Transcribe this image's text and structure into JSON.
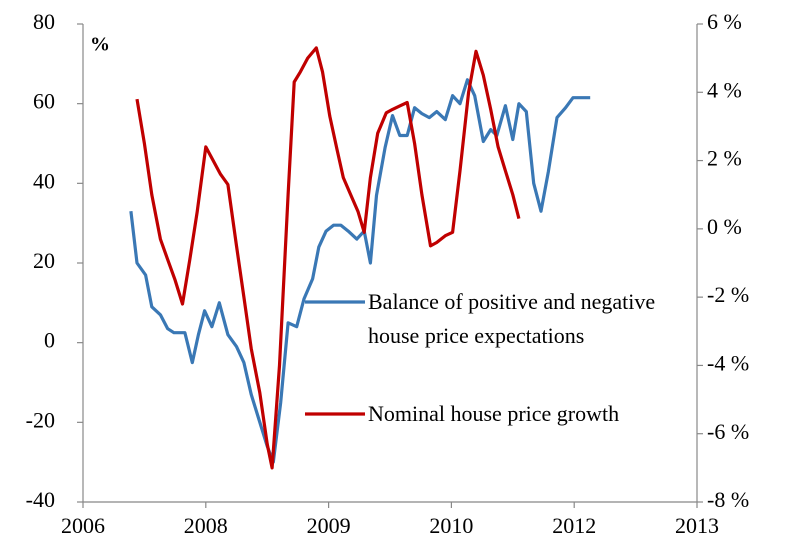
{
  "chart_data": {
    "type": "line",
    "y_unit_label": "%",
    "xlim": [
      0,
      5
    ],
    "xticks": [
      {
        "value": 0,
        "label": "2006"
      },
      {
        "value": 1,
        "label": "2008"
      },
      {
        "value": 2,
        "label": "2009"
      },
      {
        "value": 3,
        "label": "2010"
      },
      {
        "value": 4,
        "label": "2012"
      },
      {
        "value": 5,
        "label": "2013"
      }
    ],
    "ylim": [
      -40,
      80
    ],
    "yticks": [
      -40,
      -20,
      0,
      20,
      40,
      60,
      80
    ],
    "y2lim": [
      -8,
      6
    ],
    "y2ticks": [
      {
        "value": -8,
        "label": "-8 %"
      },
      {
        "value": -6,
        "label": "-6 %"
      },
      {
        "value": -4,
        "label": "-4 %"
      },
      {
        "value": -2,
        "label": "-2 %"
      },
      {
        "value": 0,
        "label": "0 %"
      },
      {
        "value": 2,
        "label": "2 %"
      },
      {
        "value": 4,
        "label": "4 %"
      },
      {
        "value": 6,
        "label": "6 %"
      }
    ],
    "series": [
      {
        "name": "Balance of positive and negative house price expectations",
        "color": "#3a78b5",
        "axis": "y",
        "x": [
          0.39,
          0.44,
          0.51,
          0.56,
          0.63,
          0.69,
          0.74,
          0.83,
          0.89,
          0.94,
          0.99,
          1.05,
          1.11,
          1.18,
          1.25,
          1.31,
          1.37,
          1.43,
          1.5,
          1.55,
          1.61,
          1.67,
          1.74,
          1.8,
          1.87,
          1.92,
          1.98,
          2.04,
          2.1,
          2.16,
          2.23,
          2.29,
          2.34,
          2.39,
          2.46,
          2.52,
          2.58,
          2.64,
          2.7,
          2.76,
          2.82,
          2.88,
          2.95,
          3.01,
          3.07,
          3.13,
          3.19,
          3.26,
          3.32,
          3.37,
          3.44,
          3.5,
          3.55,
          3.61,
          3.67,
          3.73,
          3.79,
          3.86,
          3.93,
          3.99,
          4.06,
          4.13
        ],
        "values": [
          33,
          20,
          17,
          9,
          7,
          3.5,
          2.5,
          2.5,
          -5,
          2,
          8,
          4,
          10,
          2,
          -1,
          -5,
          -13,
          -19,
          -26,
          -30,
          -15,
          5,
          4,
          11,
          16,
          24,
          28,
          29.5,
          29.5,
          28,
          26,
          28,
          20,
          37,
          49,
          57,
          52,
          52,
          59,
          57.5,
          56.5,
          58,
          56,
          62,
          60,
          66,
          62,
          50.5,
          53.5,
          52,
          59.5,
          51,
          60,
          58,
          40,
          33,
          43,
          56.5,
          59,
          61.5,
          61.5,
          61.5
        ]
      },
      {
        "name": "Nominal house price growth",
        "color": "#c00000",
        "axis": "y2",
        "x": [
          0.44,
          0.5,
          0.56,
          0.63,
          0.69,
          0.75,
          0.81,
          0.87,
          0.93,
          1.0,
          1.06,
          1.12,
          1.18,
          1.25,
          1.31,
          1.37,
          1.44,
          1.5,
          1.54,
          1.6,
          1.67,
          1.72,
          1.77,
          1.83,
          1.9,
          1.95,
          2.01,
          2.07,
          2.12,
          2.18,
          2.24,
          2.29,
          2.34,
          2.4,
          2.47,
          2.52,
          2.58,
          2.64,
          2.7,
          2.76,
          2.83,
          2.88,
          2.95,
          3.01,
          3.07,
          3.14,
          3.2,
          3.26,
          3.32,
          3.38,
          3.44,
          3.5,
          3.55
        ],
        "values": [
          3.8,
          2.5,
          1.0,
          -0.3,
          -0.9,
          -1.5,
          -2.2,
          -0.9,
          0.5,
          2.4,
          2.0,
          1.6,
          1.3,
          -0.5,
          -2.0,
          -3.5,
          -4.8,
          -6.3,
          -7.0,
          -4.0,
          1.0,
          4.3,
          4.6,
          5.0,
          5.3,
          4.6,
          3.3,
          2.3,
          1.5,
          1.0,
          0.5,
          -0.1,
          1.5,
          2.8,
          3.4,
          3.5,
          3.6,
          3.7,
          2.5,
          1.0,
          -0.5,
          -0.4,
          -0.2,
          -0.1,
          1.7,
          4.0,
          5.2,
          4.5,
          3.5,
          2.4,
          1.7,
          1.0,
          0.3
        ]
      }
    ]
  }
}
